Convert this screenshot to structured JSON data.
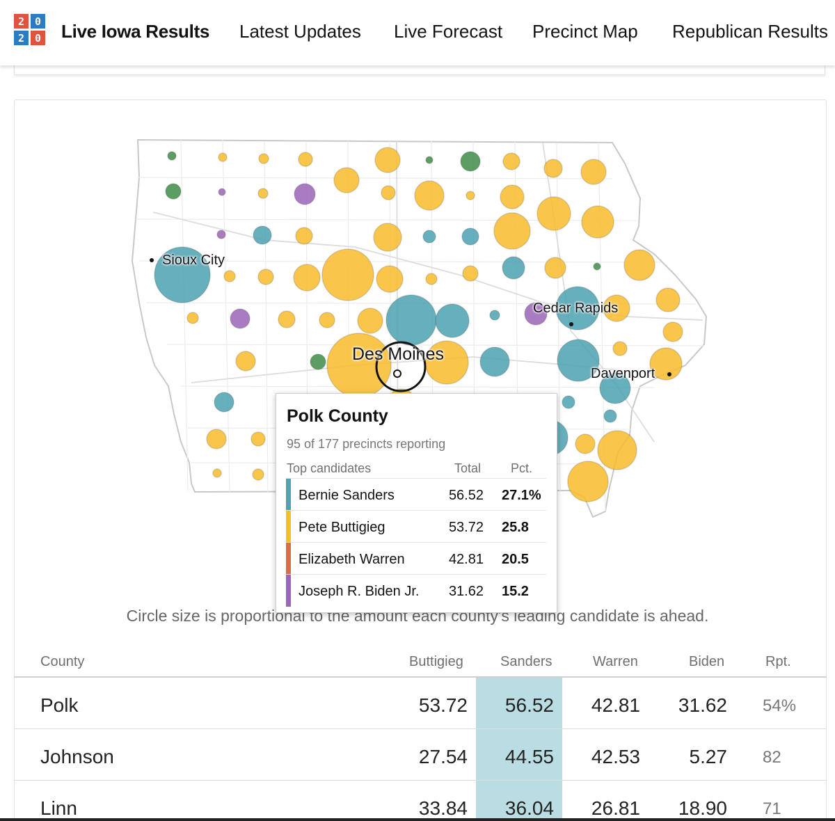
{
  "header": {
    "logo_digits": [
      "2",
      "0",
      "2",
      "0"
    ],
    "title": "Live Iowa Results",
    "nav": [
      "Latest Updates",
      "Live Forecast",
      "Precinct Map",
      "Republican Results"
    ]
  },
  "colors": {
    "sanders": "#4ca2b1",
    "buttigieg": "#f9bd2c",
    "warren": "#dd6b48",
    "biden": "#9b66b8",
    "klobuchar": "#3f8c47"
  },
  "map": {
    "cities": [
      "Sioux City",
      "Cedar Rapids",
      "Des Moines",
      "Davenport"
    ]
  },
  "tooltip": {
    "county": "Polk County",
    "precincts": "95 of 177 precincts reporting",
    "headers": {
      "candidates": "Top candidates",
      "total": "Total",
      "pct": "Pct."
    },
    "rows": [
      {
        "name": "Bernie Sanders",
        "total": "56.52",
        "pct": "27.1%",
        "color": "#4ca2b1"
      },
      {
        "name": "Pete Buttigieg",
        "total": "53.72",
        "pct": "25.8",
        "color": "#f9bd2c"
      },
      {
        "name": "Elizabeth Warren",
        "total": "42.81",
        "pct": "20.5",
        "color": "#dd6b48"
      },
      {
        "name": "Joseph R. Biden Jr.",
        "total": "31.62",
        "pct": "15.2",
        "color": "#9b66b8"
      }
    ]
  },
  "caption": "Circle size is proportional to the amount each county's leading candidate is ahead.",
  "table": {
    "headers": [
      "County",
      "Buttigieg",
      "Sanders",
      "Warren",
      "Biden",
      "Rpt."
    ],
    "rows": [
      {
        "county": "Polk",
        "buttigieg": "53.72",
        "sanders": "56.52",
        "warren": "42.81",
        "biden": "31.62",
        "rpt": "54%"
      },
      {
        "county": "Johnson",
        "buttigieg": "27.54",
        "sanders": "44.55",
        "warren": "42.53",
        "biden": "5.27",
        "rpt": "82"
      },
      {
        "county": "Linn",
        "buttigieg": "33.84",
        "sanders": "36.04",
        "warren": "26.81",
        "biden": "18.90",
        "rpt": "71"
      }
    ]
  }
}
